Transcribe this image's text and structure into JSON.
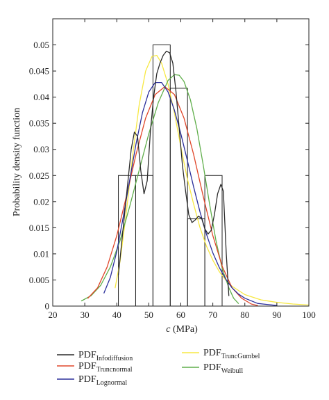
{
  "chart_data": {
    "type": "line",
    "title": "",
    "xlabel_italic": "c",
    "xlabel_rest": " (MPa)",
    "ylabel": "Probability density function",
    "xlim": [
      20,
      100
    ],
    "ylim": [
      0,
      0.055
    ],
    "xticks": [
      20,
      30,
      40,
      50,
      60,
      70,
      80,
      90,
      100
    ],
    "yticks": [
      0,
      0.005,
      0.01,
      0.015,
      0.02,
      0.025,
      0.03,
      0.035,
      0.04,
      0.045,
      0.05
    ],
    "ytick_labels": [
      "0",
      "0.005",
      "0.01",
      "0.015",
      "0.02",
      "0.025",
      "0.03",
      "0.035",
      "0.04",
      "0.045",
      "0.05"
    ],
    "grid": false,
    "legend_position": "bottom",
    "histogram": {
      "edges": [
        40.5,
        45.9,
        51.3,
        56.7,
        62.1,
        67.5,
        72.9
      ],
      "heights": [
        0.025,
        0.025,
        0.05,
        0.0417,
        0.0167,
        0.025
      ],
      "color": "#222222"
    },
    "series": [
      {
        "name": "PDF",
        "subscript": "Infodiffusion",
        "color": "#2b2b2b",
        "points": [
          [
            40.5,
            0.006
          ],
          [
            41.5,
            0.012
          ],
          [
            42.5,
            0.018
          ],
          [
            43.5,
            0.024
          ],
          [
            44.5,
            0.03
          ],
          [
            45.5,
            0.0333
          ],
          [
            46.5,
            0.0325
          ],
          [
            47.5,
            0.026
          ],
          [
            48.5,
            0.0215
          ],
          [
            49.5,
            0.024
          ],
          [
            50.5,
            0.0335
          ],
          [
            51.5,
            0.04
          ],
          [
            52.5,
            0.0445
          ],
          [
            53.5,
            0.0465
          ],
          [
            54.5,
            0.048
          ],
          [
            55.5,
            0.0488
          ],
          [
            56.5,
            0.0485
          ],
          [
            57.5,
            0.0465
          ],
          [
            58.5,
            0.041
          ],
          [
            59.5,
            0.034
          ],
          [
            60.5,
            0.027
          ],
          [
            61.5,
            0.022
          ],
          [
            62.5,
            0.0175
          ],
          [
            63.5,
            0.016
          ],
          [
            64.5,
            0.0165
          ],
          [
            65.5,
            0.0172
          ],
          [
            66.5,
            0.0168
          ],
          [
            67.5,
            0.0148
          ],
          [
            68.5,
            0.0138
          ],
          [
            69.5,
            0.0145
          ],
          [
            70.5,
            0.0175
          ],
          [
            71.5,
            0.0215
          ],
          [
            72.5,
            0.0233
          ],
          [
            73.3,
            0.022
          ],
          [
            74.2,
            0.01
          ],
          [
            75.0,
            0.002
          ]
        ]
      },
      {
        "name": "PDF",
        "subscript": "Truncnormal",
        "color": "#e0462a",
        "points": [
          [
            31,
            0.0015
          ],
          [
            34,
            0.0035
          ],
          [
            37,
            0.0075
          ],
          [
            40,
            0.0135
          ],
          [
            43,
            0.021
          ],
          [
            46,
            0.029
          ],
          [
            49,
            0.036
          ],
          [
            52,
            0.0405
          ],
          [
            55,
            0.042
          ],
          [
            58,
            0.0405
          ],
          [
            61,
            0.036
          ],
          [
            64,
            0.029
          ],
          [
            67,
            0.021
          ],
          [
            70,
            0.0135
          ],
          [
            73,
            0.0075
          ],
          [
            76,
            0.0035
          ],
          [
            79,
            0.0015
          ],
          [
            82,
            0.0004
          ],
          [
            84,
            0.0001
          ]
        ]
      },
      {
        "name": "PDF",
        "subscript": "Lognormal",
        "color": "#2a2e9a",
        "points": [
          [
            36,
            0.0025
          ],
          [
            38,
            0.0055
          ],
          [
            40,
            0.0105
          ],
          [
            42,
            0.017
          ],
          [
            44,
            0.024
          ],
          [
            46,
            0.031
          ],
          [
            48,
            0.037
          ],
          [
            50,
            0.041
          ],
          [
            52,
            0.0428
          ],
          [
            54,
            0.0428
          ],
          [
            56,
            0.041
          ],
          [
            58,
            0.0375
          ],
          [
            60,
            0.033
          ],
          [
            62,
            0.028
          ],
          [
            64,
            0.0228
          ],
          [
            66,
            0.018
          ],
          [
            68,
            0.0138
          ],
          [
            70,
            0.0102
          ],
          [
            72,
            0.0074
          ],
          [
            74,
            0.0052
          ],
          [
            76,
            0.0035
          ],
          [
            78,
            0.0023
          ],
          [
            80,
            0.0015
          ],
          [
            84,
            0.0005
          ],
          [
            90,
            0.0001
          ]
        ]
      },
      {
        "name": "PDF",
        "subscript": "TruncGumbel",
        "color": "#f7e842",
        "points": [
          [
            39.5,
            0.0035
          ],
          [
            41,
            0.0085
          ],
          [
            43,
            0.018
          ],
          [
            45,
            0.029
          ],
          [
            47,
            0.0385
          ],
          [
            49,
            0.045
          ],
          [
            51,
            0.0478
          ],
          [
            52.5,
            0.048
          ],
          [
            54,
            0.0465
          ],
          [
            56,
            0.0425
          ],
          [
            58,
            0.037
          ],
          [
            60,
            0.0305
          ],
          [
            62,
            0.0245
          ],
          [
            64,
            0.0195
          ],
          [
            66,
            0.015
          ],
          [
            68,
            0.0115
          ],
          [
            70,
            0.0088
          ],
          [
            72,
            0.0066
          ],
          [
            74,
            0.005
          ],
          [
            76,
            0.0038
          ],
          [
            80,
            0.0022
          ],
          [
            85,
            0.0012
          ],
          [
            90,
            0.0007
          ],
          [
            95,
            0.0004
          ],
          [
            100,
            0.0002
          ]
        ]
      },
      {
        "name": "PDF",
        "subscript": "Weibull",
        "color": "#5fae4a",
        "points": [
          [
            29,
            0.001
          ],
          [
            32,
            0.002
          ],
          [
            35,
            0.004
          ],
          [
            38,
            0.0075
          ],
          [
            41,
            0.0125
          ],
          [
            44,
            0.019
          ],
          [
            47,
            0.026
          ],
          [
            50,
            0.033
          ],
          [
            53,
            0.039
          ],
          [
            56,
            0.0432
          ],
          [
            58,
            0.0443
          ],
          [
            59.5,
            0.0442
          ],
          [
            61,
            0.043
          ],
          [
            63,
            0.0395
          ],
          [
            65,
            0.034
          ],
          [
            67,
            0.027
          ],
          [
            69,
            0.0195
          ],
          [
            71,
            0.0125
          ],
          [
            73,
            0.007
          ],
          [
            75,
            0.0035
          ],
          [
            76.5,
            0.0015
          ],
          [
            78,
            0.0005
          ]
        ]
      }
    ]
  }
}
